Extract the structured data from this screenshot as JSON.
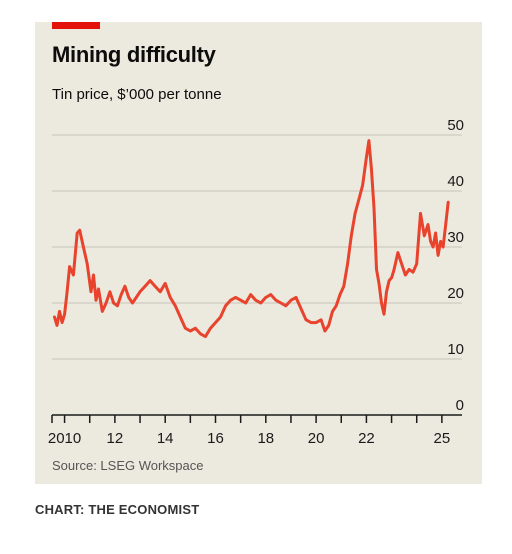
{
  "header": {
    "title": "Mining difficulty",
    "subtitle": "Tin price, $’000 per tonne"
  },
  "footer": {
    "source": "Source: LSEG Workspace",
    "credit": "CHART: THE ECONOMIST"
  },
  "colors": {
    "accent": "#e3120b",
    "line": "#e8432d",
    "background": "#ece9de",
    "grid": "#c6c4bb",
    "axis": "#1a1a1a"
  },
  "chart_data": {
    "type": "line",
    "title": "Mining difficulty",
    "subtitle": "Tin price, $’000 per tonne",
    "xlabel": "",
    "ylabel": "",
    "y_axis_position": "right",
    "grid": true,
    "ylim": [
      0,
      50
    ],
    "xlim": [
      2009.5,
      2025.8
    ],
    "y_ticks": [
      0,
      10,
      20,
      30,
      40,
      50
    ],
    "y_tick_labels": [
      "0",
      "10",
      "20",
      "30",
      "40",
      "50"
    ],
    "x_ticks": [
      2009.5,
      2010,
      2011,
      2012,
      2013,
      2014,
      2015,
      2016,
      2017,
      2018,
      2019,
      2020,
      2021,
      2022,
      2023,
      2024,
      2025
    ],
    "x_tick_labels": [
      {
        "x": 2010,
        "label": "2010"
      },
      {
        "x": 2012,
        "label": "12"
      },
      {
        "x": 2014,
        "label": "14"
      },
      {
        "x": 2016,
        "label": "16"
      },
      {
        "x": 2018,
        "label": "18"
      },
      {
        "x": 2020,
        "label": "20"
      },
      {
        "x": 2022,
        "label": "22"
      },
      {
        "x": 2025,
        "label": "25"
      }
    ],
    "series": [
      {
        "x": [
          2009.6,
          2009.7,
          2009.8,
          2009.9,
          2010.0,
          2010.1,
          2010.2,
          2010.35,
          2010.5,
          2010.6,
          2010.75,
          2010.9,
          2011.05,
          2011.15,
          2011.25,
          2011.35,
          2011.5,
          2011.65,
          2011.8,
          2011.95,
          2012.1,
          2012.25,
          2012.4,
          2012.55,
          2012.7,
          2012.85,
          2013.0,
          2013.2,
          2013.4,
          2013.6,
          2013.8,
          2014.0,
          2014.2,
          2014.4,
          2014.6,
          2014.8,
          2015.0,
          2015.2,
          2015.4,
          2015.6,
          2015.8,
          2016.0,
          2016.2,
          2016.4,
          2016.6,
          2016.8,
          2017.0,
          2017.2,
          2017.4,
          2017.6,
          2017.8,
          2018.0,
          2018.2,
          2018.4,
          2018.6,
          2018.8,
          2019.0,
          2019.2,
          2019.4,
          2019.6,
          2019.8,
          2020.0,
          2020.2,
          2020.35,
          2020.5,
          2020.65,
          2020.8,
          2020.95,
          2021.1,
          2021.25,
          2021.4,
          2021.55,
          2021.7,
          2021.85,
          2022.0,
          2022.1,
          2022.2,
          2022.3,
          2022.4,
          2022.5,
          2022.6,
          2022.7,
          2022.8,
          2022.9,
          2023.0,
          2023.1,
          2023.25,
          2023.4,
          2023.55,
          2023.7,
          2023.85,
          2024.0,
          2024.15,
          2024.3,
          2024.45,
          2024.55,
          2024.65,
          2024.75,
          2024.85,
          2024.95,
          2025.05,
          2025.15,
          2025.25
        ],
        "values": [
          17.5,
          16.0,
          18.5,
          16.5,
          18.0,
          22.0,
          26.5,
          25.0,
          32.5,
          33.0,
          30.0,
          27.0,
          22.0,
          25.0,
          20.5,
          22.5,
          18.5,
          20.0,
          22.0,
          20.0,
          19.5,
          21.5,
          23.0,
          21.0,
          20.0,
          21.0,
          22.0,
          23.0,
          24.0,
          23.0,
          22.0,
          23.5,
          21.0,
          19.5,
          17.5,
          15.5,
          15.0,
          15.5,
          14.5,
          14.0,
          15.5,
          16.5,
          17.5,
          19.5,
          20.5,
          21.0,
          20.5,
          20.0,
          21.5,
          20.5,
          20.0,
          21.0,
          21.5,
          20.5,
          20.0,
          19.5,
          20.5,
          21.0,
          19.0,
          17.0,
          16.5,
          16.5,
          17.0,
          15.0,
          16.0,
          18.5,
          19.5,
          21.5,
          23.0,
          27.0,
          32.0,
          36.0,
          38.5,
          41.0,
          46.0,
          49.0,
          44.0,
          37.0,
          26.0,
          23.5,
          20.0,
          18.0,
          22.0,
          24.0,
          24.5,
          26.0,
          29.0,
          27.0,
          25.0,
          26.0,
          25.5,
          27.0,
          36.0,
          32.0,
          34.0,
          31.0,
          30.0,
          32.5,
          28.5,
          31.0,
          30.0,
          34.0,
          38.0
        ]
      }
    ]
  }
}
